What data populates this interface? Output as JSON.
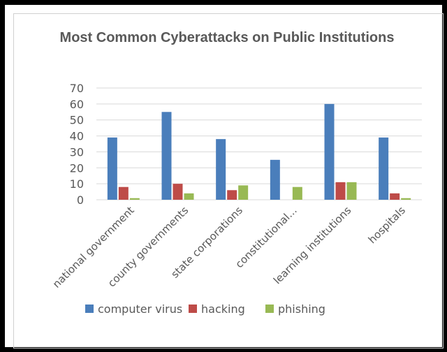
{
  "chart_data": {
    "type": "bar",
    "title": "Most Common Cyberattacks on Public Institutions",
    "categories": [
      "national government",
      "county governments",
      "state corporations",
      "constitutional...",
      "learning institutions",
      "hospitals"
    ],
    "series": [
      {
        "name": "computer virus",
        "color": "#4a7ebb",
        "values": [
          39,
          55,
          38,
          25,
          60,
          39
        ]
      },
      {
        "name": "hacking",
        "color": "#be4b48",
        "values": [
          8,
          10,
          6,
          0,
          11,
          4
        ]
      },
      {
        "name": "phishing",
        "color": "#98b954",
        "values": [
          1,
          4,
          9,
          8,
          11,
          1
        ]
      }
    ],
    "ylim": [
      0,
      70
    ],
    "yticks": [
      0,
      10,
      20,
      30,
      40,
      50,
      60,
      70
    ],
    "grid": true,
    "legend": "bottom"
  }
}
